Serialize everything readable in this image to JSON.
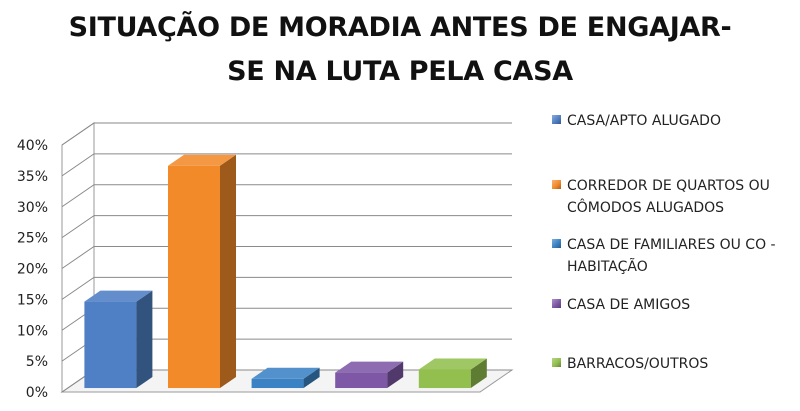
{
  "chart_data": {
    "type": "bar",
    "title_lines": [
      "SITUAÇÃO DE MORADIA ANTES DE ENGAJAR-",
      "SE NA LUTA PELA CASA"
    ],
    "xlabel": "",
    "ylabel": "",
    "ylim": [
      0,
      40
    ],
    "y_ticks": [
      "0%",
      "5%",
      "10%",
      "15%",
      "20%",
      "25%",
      "30%",
      "35%",
      "40%"
    ],
    "grid": true,
    "three_d": true,
    "legend_position": "right",
    "categories": [
      "CASA/APTO ALUGADO",
      "CORREDOR DE QUARTOS OU CÔMODOS ALUGADOS",
      "CASA DE FAMILIARES OU CO - HABITAÇÃO",
      "CASA DE AMIGOS",
      "BARRACOS/OUTROS"
    ],
    "values": [
      14,
      36,
      1.5,
      2.5,
      3
    ],
    "colors": [
      "#4f7fc4",
      "#f28a2a",
      "#3a82c4",
      "#7e58a6",
      "#92bf4e"
    ]
  }
}
